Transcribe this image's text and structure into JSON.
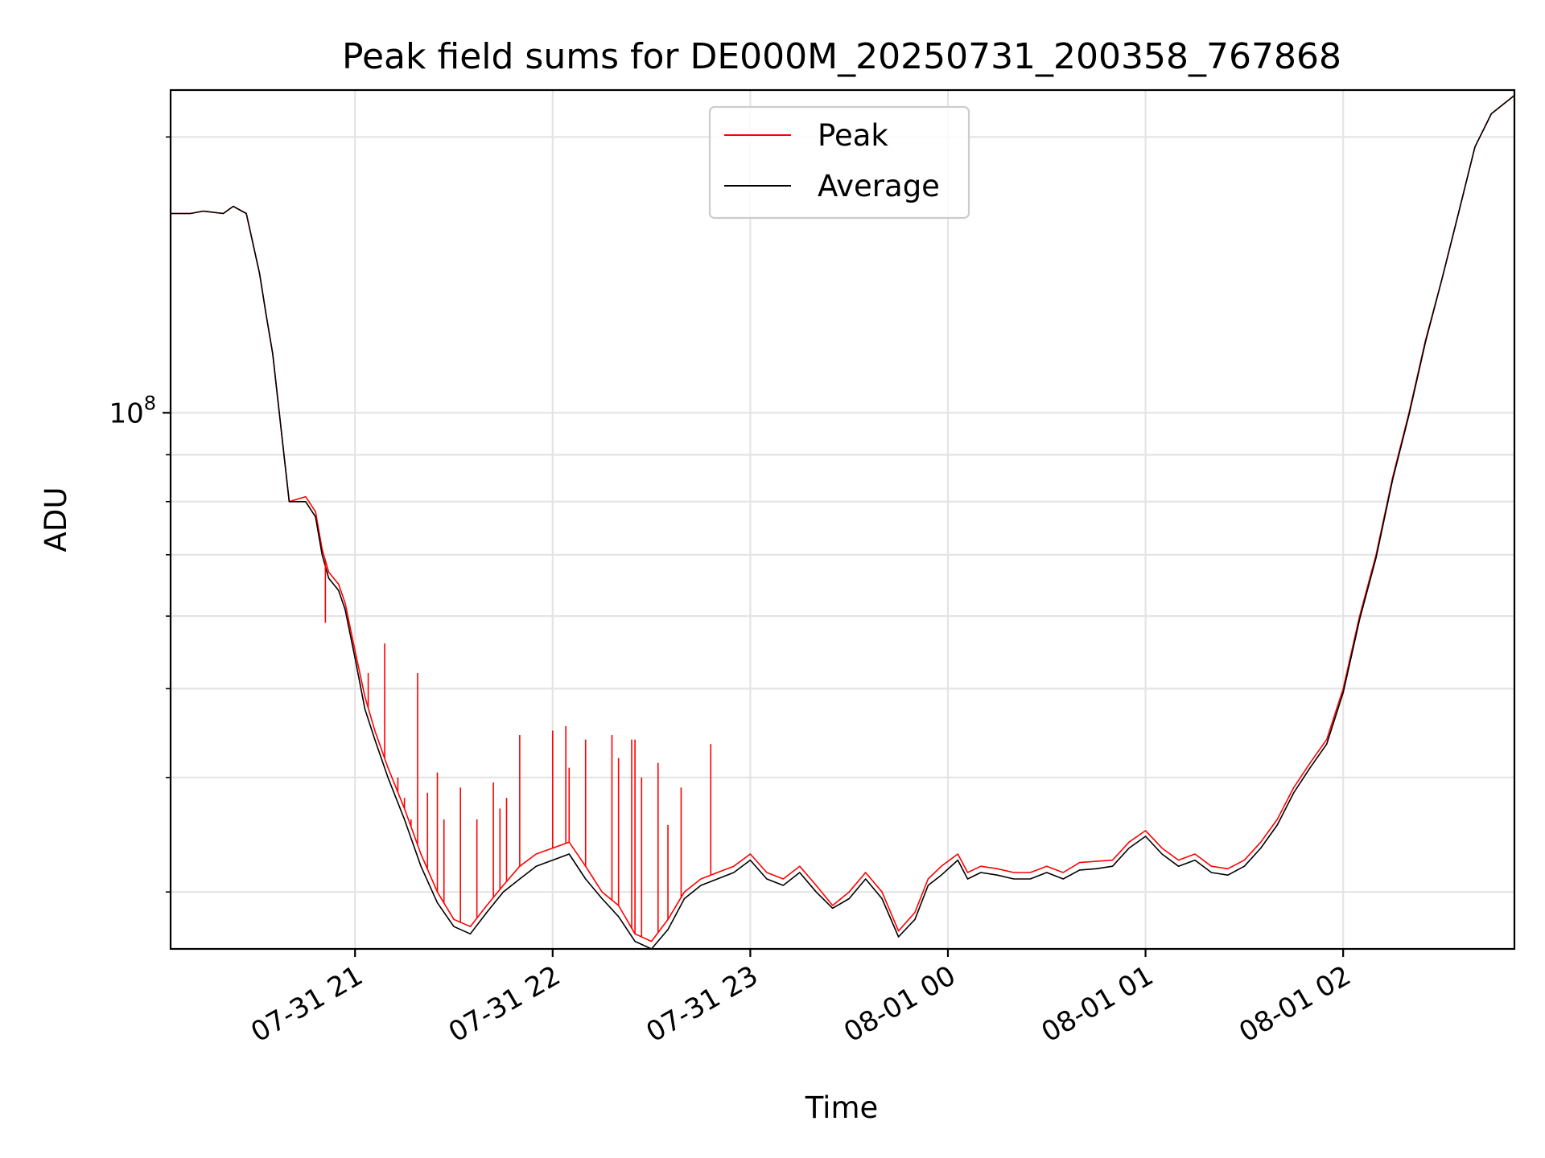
{
  "chart_data": {
    "type": "line",
    "title": "Peak field sums for DE000M_20250731_200358_767868",
    "xlabel": "Time",
    "ylabel": "ADU",
    "x_axis": "time",
    "x_range": [
      "2025-07-31T20:04:00",
      "2025-08-01T02:52:00"
    ],
    "y_scale": "log",
    "ylim": [
      26000000,
      225000000
    ],
    "x_ticks": [
      {
        "t": "2025-07-31T21:00:00",
        "label": "07-31 21"
      },
      {
        "t": "2025-07-31T22:00:00",
        "label": "07-31 22"
      },
      {
        "t": "2025-07-31T23:00:00",
        "label": "07-31 23"
      },
      {
        "t": "2025-08-01T00:00:00",
        "label": "08-01 00"
      },
      {
        "t": "2025-08-01T01:00:00",
        "label": "08-01 01"
      },
      {
        "t": "2025-08-01T02:00:00",
        "label": "08-01 02"
      }
    ],
    "y_major_ticks": [
      {
        "value": 100000000,
        "label_base": "10",
        "label_exp": "8"
      }
    ],
    "y_minor_ticks": [
      30000000,
      40000000,
      50000000,
      60000000,
      70000000,
      80000000,
      90000000,
      200000000
    ],
    "grid": true,
    "legend": {
      "position": "top-center"
    },
    "series": [
      {
        "name": "Peak",
        "color": "#ff0000",
        "x": [
          "2025-07-31T20:04:00",
          "2025-07-31T20:10:00",
          "2025-07-31T20:14:00",
          "2025-07-31T20:20:00",
          "2025-07-31T20:23:00",
          "2025-07-31T20:27:00",
          "2025-07-31T20:31:00",
          "2025-07-31T20:33:00",
          "2025-07-31T20:35:00",
          "2025-07-31T20:40:00",
          "2025-07-31T20:45:00",
          "2025-07-31T20:48:00",
          "2025-07-31T20:50:00",
          "2025-07-31T20:52:00",
          "2025-07-31T20:55:00",
          "2025-07-31T20:57:00",
          "2025-07-31T21:00:00",
          "2025-07-31T21:03:00",
          "2025-07-31T21:06:00",
          "2025-07-31T21:10:00",
          "2025-07-31T21:15:00",
          "2025-07-31T21:20:00",
          "2025-07-31T21:25:00",
          "2025-07-31T21:30:00",
          "2025-07-31T21:35:00",
          "2025-07-31T21:40:00",
          "2025-07-31T21:45:00",
          "2025-07-31T21:50:00",
          "2025-07-31T21:55:00",
          "2025-07-31T22:00:00",
          "2025-07-31T22:05:00",
          "2025-07-31T22:10:00",
          "2025-07-31T22:15:00",
          "2025-07-31T22:20:00",
          "2025-07-31T22:25:00",
          "2025-07-31T22:30:00",
          "2025-07-31T22:35:00",
          "2025-07-31T22:40:00",
          "2025-07-31T22:45:00",
          "2025-07-31T22:50:00",
          "2025-07-31T22:55:00",
          "2025-07-31T23:00:00",
          "2025-07-31T23:05:00",
          "2025-07-31T23:10:00",
          "2025-07-31T23:15:00",
          "2025-07-31T23:20:00",
          "2025-07-31T23:25:00",
          "2025-07-31T23:30:00",
          "2025-07-31T23:35:00",
          "2025-07-31T23:40:00",
          "2025-07-31T23:45:00",
          "2025-07-31T23:50:00",
          "2025-07-31T23:54:00",
          "2025-07-31T23:58:00",
          "2025-08-01T00:03:00",
          "2025-08-01T00:06:00",
          "2025-08-01T00:10:00",
          "2025-08-01T00:15:00",
          "2025-08-01T00:20:00",
          "2025-08-01T00:25:00",
          "2025-08-01T00:30:00",
          "2025-08-01T00:35:00",
          "2025-08-01T00:40:00",
          "2025-08-01T00:45:00",
          "2025-08-01T00:50:00",
          "2025-08-01T00:55:00",
          "2025-08-01T01:00:00",
          "2025-08-01T01:05:00",
          "2025-08-01T01:10:00",
          "2025-08-01T01:15:00",
          "2025-08-01T01:20:00",
          "2025-08-01T01:25:00",
          "2025-08-01T01:30:00",
          "2025-08-01T01:35:00",
          "2025-08-01T01:40:00",
          "2025-08-01T01:45:00",
          "2025-08-01T01:50:00",
          "2025-08-01T01:55:00",
          "2025-08-01T02:00:00",
          "2025-08-01T02:05:00",
          "2025-08-01T02:10:00",
          "2025-08-01T02:15:00",
          "2025-08-01T02:20:00",
          "2025-08-01T02:25:00",
          "2025-08-01T02:30:00",
          "2025-08-01T02:35:00",
          "2025-08-01T02:40:00",
          "2025-08-01T02:45:00",
          "2025-08-01T02:52:00"
        ],
        "values": [
          165000000,
          165000000,
          166000000,
          165000000,
          168000000,
          165000000,
          142000000,
          128000000,
          116000000,
          80000000,
          81000000,
          78000000,
          71000000,
          67000000,
          65000000,
          62000000,
          55000000,
          49000000,
          45000000,
          41000000,
          37000000,
          33000000,
          30000000,
          28000000,
          27500000,
          29000000,
          30500000,
          32000000,
          33000000,
          33500000,
          34000000,
          32000000,
          30000000,
          29000000,
          27000000,
          26500000,
          28000000,
          30000000,
          31000000,
          31500000,
          32000000,
          33000000,
          31500000,
          31000000,
          32000000,
          30500000,
          29000000,
          30000000,
          31500000,
          30000000,
          27200000,
          28500000,
          31000000,
          32000000,
          33000000,
          31500000,
          32000000,
          31800000,
          31500000,
          31500000,
          32000000,
          31500000,
          32300000,
          32400000,
          32500000,
          34000000,
          35000000,
          33500000,
          32500000,
          33000000,
          32000000,
          31800000,
          32500000,
          34000000,
          36000000,
          39000000,
          41500000,
          44000000,
          50000000,
          60000000,
          70000000,
          85000000,
          100000000,
          120000000,
          140000000,
          165000000,
          195000000,
          212000000,
          222000000
        ]
      },
      {
        "name": "Average",
        "color": "#000000",
        "x": [
          "2025-07-31T20:04:00",
          "2025-07-31T20:10:00",
          "2025-07-31T20:14:00",
          "2025-07-31T20:20:00",
          "2025-07-31T20:23:00",
          "2025-07-31T20:27:00",
          "2025-07-31T20:31:00",
          "2025-07-31T20:33:00",
          "2025-07-31T20:35:00",
          "2025-07-31T20:40:00",
          "2025-07-31T20:45:00",
          "2025-07-31T20:48:00",
          "2025-07-31T20:50:00",
          "2025-07-31T20:52:00",
          "2025-07-31T20:55:00",
          "2025-07-31T20:57:00",
          "2025-07-31T21:00:00",
          "2025-07-31T21:03:00",
          "2025-07-31T21:06:00",
          "2025-07-31T21:10:00",
          "2025-07-31T21:15:00",
          "2025-07-31T21:20:00",
          "2025-07-31T21:25:00",
          "2025-07-31T21:30:00",
          "2025-07-31T21:35:00",
          "2025-07-31T21:40:00",
          "2025-07-31T21:45:00",
          "2025-07-31T21:50:00",
          "2025-07-31T21:55:00",
          "2025-07-31T22:00:00",
          "2025-07-31T22:05:00",
          "2025-07-31T22:10:00",
          "2025-07-31T22:15:00",
          "2025-07-31T22:20:00",
          "2025-07-31T22:25:00",
          "2025-07-31T22:30:00",
          "2025-07-31T22:35:00",
          "2025-07-31T22:40:00",
          "2025-07-31T22:45:00",
          "2025-07-31T22:50:00",
          "2025-07-31T22:55:00",
          "2025-07-31T23:00:00",
          "2025-07-31T23:05:00",
          "2025-07-31T23:10:00",
          "2025-07-31T23:15:00",
          "2025-07-31T23:20:00",
          "2025-07-31T23:25:00",
          "2025-07-31T23:30:00",
          "2025-07-31T23:35:00",
          "2025-07-31T23:40:00",
          "2025-07-31T23:45:00",
          "2025-07-31T23:50:00",
          "2025-07-31T23:54:00",
          "2025-07-31T23:58:00",
          "2025-08-01T00:03:00",
          "2025-08-01T00:06:00",
          "2025-08-01T00:10:00",
          "2025-08-01T00:15:00",
          "2025-08-01T00:20:00",
          "2025-08-01T00:25:00",
          "2025-08-01T00:30:00",
          "2025-08-01T00:35:00",
          "2025-08-01T00:40:00",
          "2025-08-01T00:45:00",
          "2025-08-01T00:50:00",
          "2025-08-01T00:55:00",
          "2025-08-01T01:00:00",
          "2025-08-01T01:05:00",
          "2025-08-01T01:10:00",
          "2025-08-01T01:15:00",
          "2025-08-01T01:20:00",
          "2025-08-01T01:25:00",
          "2025-08-01T01:30:00",
          "2025-08-01T01:35:00",
          "2025-08-01T01:40:00",
          "2025-08-01T01:45:00",
          "2025-08-01T01:50:00",
          "2025-08-01T01:55:00",
          "2025-08-01T02:00:00",
          "2025-08-01T02:05:00",
          "2025-08-01T02:10:00",
          "2025-08-01T02:15:00",
          "2025-08-01T02:20:00",
          "2025-08-01T02:25:00",
          "2025-08-01T02:30:00",
          "2025-08-01T02:35:00",
          "2025-08-01T02:40:00",
          "2025-08-01T02:45:00",
          "2025-08-01T02:52:00"
        ],
        "values": [
          165000000,
          165000000,
          166000000,
          165000000,
          168000000,
          165000000,
          142000000,
          128000000,
          116000000,
          80000000,
          80000000,
          77000000,
          70000000,
          66000000,
          64000000,
          61000000,
          54000000,
          47500000,
          44000000,
          40000000,
          36000000,
          32000000,
          29200000,
          27500000,
          27000000,
          28500000,
          30000000,
          31000000,
          32000000,
          32500000,
          33000000,
          31000000,
          29500000,
          28200000,
          26500000,
          26000000,
          27300000,
          29500000,
          30500000,
          31000000,
          31500000,
          32500000,
          31000000,
          30500000,
          31500000,
          30000000,
          28800000,
          29500000,
          31000000,
          29500000,
          26800000,
          28000000,
          30500000,
          31300000,
          32500000,
          31000000,
          31500000,
          31300000,
          31000000,
          31000000,
          31500000,
          31000000,
          31700000,
          31800000,
          32000000,
          33500000,
          34500000,
          33000000,
          32000000,
          32500000,
          31500000,
          31300000,
          32000000,
          33500000,
          35500000,
          38500000,
          41000000,
          43500000,
          49500000,
          59500000,
          69500000,
          84500000,
          99500000,
          119500000,
          140000000,
          165000000,
          195000000,
          212000000,
          222000000
        ]
      }
    ],
    "peak_spikes": [
      {
        "t": "2025-07-31T20:51:00",
        "value": 59000000
      },
      {
        "t": "2025-07-31T21:04:00",
        "value": 52000000
      },
      {
        "t": "2025-07-31T21:09:00",
        "value": 56000000
      },
      {
        "t": "2025-07-31T21:13:00",
        "value": 40000000
      },
      {
        "t": "2025-07-31T21:15:00",
        "value": 38000000
      },
      {
        "t": "2025-07-31T21:17:00",
        "value": 36000000
      },
      {
        "t": "2025-07-31T21:19:00",
        "value": 52000000
      },
      {
        "t": "2025-07-31T21:22:00",
        "value": 38500000
      },
      {
        "t": "2025-07-31T21:25:00",
        "value": 40500000
      },
      {
        "t": "2025-07-31T21:27:00",
        "value": 36000000
      },
      {
        "t": "2025-07-31T21:32:00",
        "value": 39000000
      },
      {
        "t": "2025-07-31T21:37:00",
        "value": 36000000
      },
      {
        "t": "2025-07-31T21:42:00",
        "value": 39500000
      },
      {
        "t": "2025-07-31T21:44:00",
        "value": 37000000
      },
      {
        "t": "2025-07-31T21:46:00",
        "value": 38000000
      },
      {
        "t": "2025-07-31T21:50:00",
        "value": 44500000
      },
      {
        "t": "2025-07-31T22:00:00",
        "value": 45000000
      },
      {
        "t": "2025-07-31T22:04:00",
        "value": 45500000
      },
      {
        "t": "2025-07-31T22:05:00",
        "value": 41000000
      },
      {
        "t": "2025-07-31T22:10:00",
        "value": 44000000
      },
      {
        "t": "2025-07-31T22:18:00",
        "value": 44500000
      },
      {
        "t": "2025-07-31T22:20:00",
        "value": 42000000
      },
      {
        "t": "2025-07-31T22:24:00",
        "value": 44000000
      },
      {
        "t": "2025-07-31T22:25:00",
        "value": 44000000
      },
      {
        "t": "2025-07-31T22:27:00",
        "value": 40000000
      },
      {
        "t": "2025-07-31T22:32:00",
        "value": 41500000
      },
      {
        "t": "2025-07-31T22:35:00",
        "value": 35500000
      },
      {
        "t": "2025-07-31T22:39:00",
        "value": 39000000
      },
      {
        "t": "2025-07-31T22:48:00",
        "value": 43500000
      }
    ]
  }
}
